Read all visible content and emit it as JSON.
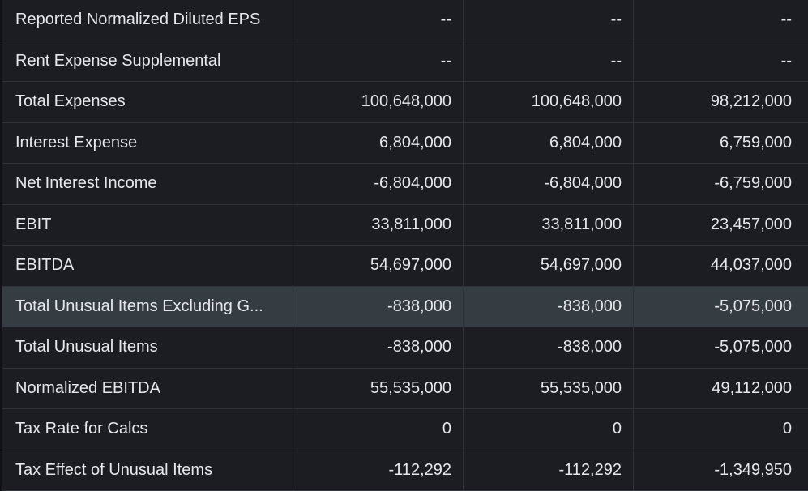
{
  "rows": [
    {
      "label": "Reported Normalized Diluted EPS",
      "values": [
        "--",
        "--",
        "--"
      ]
    },
    {
      "label": "Rent Expense Supplemental",
      "values": [
        "--",
        "--",
        "--"
      ]
    },
    {
      "label": "Total Expenses",
      "values": [
        "100,648,000",
        "100,648,000",
        "98,212,000"
      ]
    },
    {
      "label": "Interest Expense",
      "values": [
        "6,804,000",
        "6,804,000",
        "6,759,000"
      ]
    },
    {
      "label": "Net Interest Income",
      "values": [
        "-6,804,000",
        "-6,804,000",
        "-6,759,000"
      ]
    },
    {
      "label": "EBIT",
      "values": [
        "33,811,000",
        "33,811,000",
        "23,457,000"
      ]
    },
    {
      "label": "EBITDA",
      "values": [
        "54,697,000",
        "54,697,000",
        "44,037,000"
      ]
    },
    {
      "label": "Total Unusual Items Excluding G...",
      "values": [
        "-838,000",
        "-838,000",
        "-5,075,000"
      ],
      "highlighted": true
    },
    {
      "label": "Total Unusual Items",
      "values": [
        "-838,000",
        "-838,000",
        "-5,075,000"
      ]
    },
    {
      "label": "Normalized EBITDA",
      "values": [
        "55,535,000",
        "55,535,000",
        "49,112,000"
      ]
    },
    {
      "label": "Tax Rate for Calcs",
      "values": [
        "0",
        "0",
        "0"
      ]
    },
    {
      "label": "Tax Effect of Unusual Items",
      "values": [
        "-112,292",
        "-112,292",
        "-1,349,950"
      ]
    }
  ]
}
